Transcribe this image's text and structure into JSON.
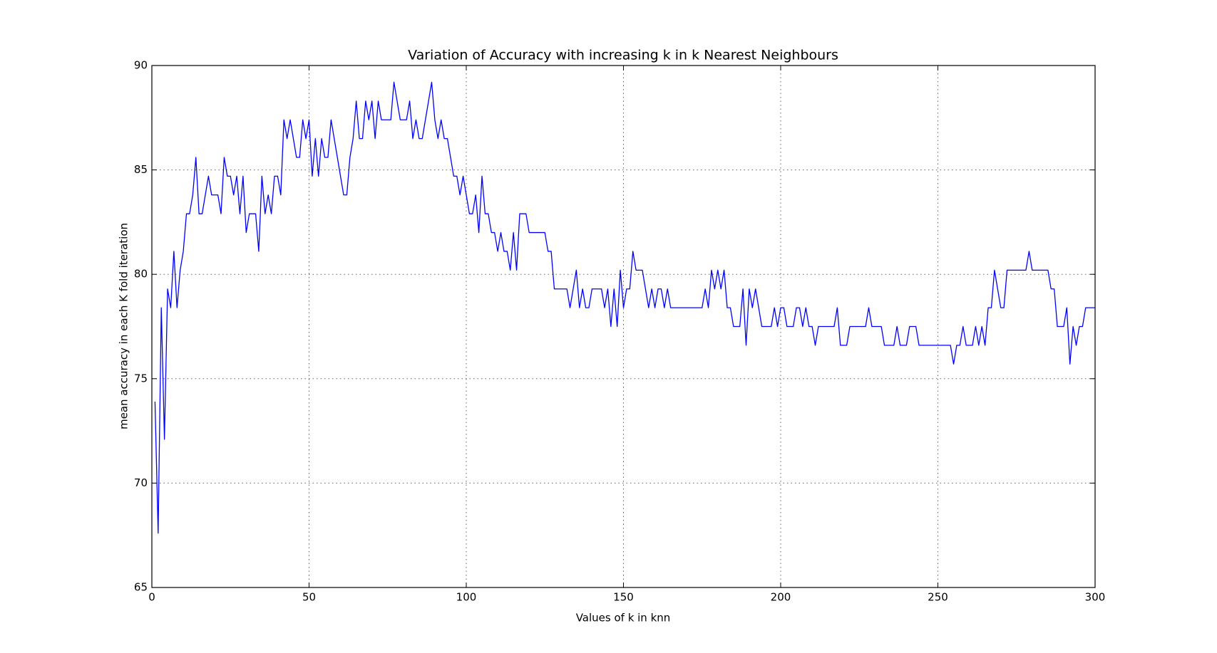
{
  "chart_data": {
    "type": "line",
    "title": "Variation of Accuracy with increasing k in k Nearest Neighbours",
    "x_label": "Values of k in knn",
    "y_label": "mean accuracy in each K fold iteration",
    "xlim": [
      0,
      300
    ],
    "ylim": [
      65,
      90
    ],
    "xticks": [
      0,
      50,
      100,
      150,
      200,
      250,
      300
    ],
    "yticks": [
      65,
      70,
      75,
      80,
      85,
      90
    ],
    "grid": true,
    "x": [
      1,
      2,
      3,
      4,
      5,
      6,
      7,
      8,
      9,
      10,
      11,
      12,
      13,
      14,
      15,
      16,
      17,
      18,
      19,
      20,
      21,
      22,
      23,
      24,
      25,
      26,
      27,
      28,
      29,
      30,
      31,
      32,
      33,
      34,
      35,
      36,
      37,
      38,
      39,
      40,
      41,
      42,
      43,
      44,
      45,
      46,
      47,
      48,
      49,
      50,
      51,
      52,
      53,
      54,
      55,
      56,
      57,
      58,
      59,
      60,
      61,
      62,
      63,
      64,
      65,
      66,
      67,
      68,
      69,
      70,
      71,
      72,
      73,
      74,
      75,
      76,
      77,
      78,
      79,
      80,
      81,
      82,
      83,
      84,
      85,
      86,
      87,
      88,
      89,
      90,
      91,
      92,
      93,
      94,
      95,
      96,
      97,
      98,
      99,
      100,
      101,
      102,
      103,
      104,
      105,
      106,
      107,
      108,
      109,
      110,
      111,
      112,
      113,
      114,
      115,
      116,
      117,
      118,
      119,
      120,
      121,
      122,
      123,
      124,
      125,
      126,
      127,
      128,
      129,
      130,
      131,
      132,
      133,
      134,
      135,
      136,
      137,
      138,
      139,
      140,
      141,
      142,
      143,
      144,
      145,
      146,
      147,
      148,
      149,
      150,
      151,
      152,
      153,
      154,
      155,
      156,
      157,
      158,
      159,
      160,
      161,
      162,
      163,
      164,
      165,
      166,
      167,
      168,
      169,
      170,
      171,
      172,
      173,
      174,
      175,
      176,
      177,
      178,
      179,
      180,
      181,
      182,
      183,
      184,
      185,
      186,
      187,
      188,
      189,
      190,
      191,
      192,
      193,
      194,
      195,
      196,
      197,
      198,
      199,
      200,
      201,
      202,
      203,
      204,
      205,
      206,
      207,
      208,
      209,
      210,
      211,
      212,
      213,
      214,
      215,
      216,
      217,
      218,
      219,
      220,
      221,
      222,
      223,
      224,
      225,
      226,
      227,
      228,
      229,
      230,
      231,
      232,
      233,
      234,
      235,
      236,
      237,
      238,
      239,
      240,
      241,
      242,
      243,
      244,
      245,
      246,
      247,
      248,
      249,
      250,
      251,
      252,
      253,
      254,
      255,
      256,
      257,
      258,
      259,
      260,
      261,
      262,
      263,
      264,
      265,
      266,
      267,
      268,
      269,
      270,
      271,
      272,
      273,
      274,
      275,
      276,
      277,
      278,
      279,
      280,
      281,
      282,
      283,
      284,
      285,
      286,
      287,
      288,
      289,
      290,
      291,
      292,
      293,
      294,
      295,
      296,
      297,
      298,
      299,
      300
    ],
    "series": [
      {
        "color": "#0000ff",
        "values": [
          73.9,
          67.6,
          78.4,
          72.1,
          79.3,
          78.4,
          81.1,
          78.4,
          80.2,
          81.1,
          82.9,
          82.9,
          83.8,
          85.6,
          82.9,
          82.9,
          83.8,
          84.7,
          83.8,
          83.8,
          83.8,
          82.9,
          85.6,
          84.7,
          84.7,
          83.8,
          84.7,
          82.9,
          84.7,
          82.0,
          82.9,
          82.9,
          82.9,
          81.1,
          84.7,
          82.9,
          83.8,
          82.9,
          84.7,
          84.7,
          83.8,
          87.4,
          86.5,
          87.4,
          86.5,
          85.6,
          85.6,
          87.4,
          86.5,
          87.4,
          84.7,
          86.5,
          84.7,
          86.5,
          85.6,
          85.6,
          87.4,
          86.5,
          85.6,
          84.7,
          83.8,
          83.8,
          85.6,
          86.5,
          88.3,
          86.5,
          86.5,
          88.3,
          87.4,
          88.3,
          86.5,
          88.3,
          87.4,
          87.4,
          87.4,
          87.4,
          89.2,
          88.3,
          87.4,
          87.4,
          87.4,
          88.3,
          86.5,
          87.4,
          86.5,
          86.5,
          87.4,
          88.3,
          89.2,
          87.4,
          86.5,
          87.4,
          86.5,
          86.5,
          85.6,
          84.7,
          84.7,
          83.8,
          84.7,
          83.8,
          82.9,
          82.9,
          83.8,
          82.0,
          84.7,
          82.9,
          82.9,
          82.0,
          82.0,
          81.1,
          82.0,
          81.1,
          81.1,
          80.2,
          82.0,
          80.2,
          82.9,
          82.9,
          82.9,
          82.0,
          82.0,
          82.0,
          82.0,
          82.0,
          82.0,
          81.1,
          81.1,
          79.3,
          79.3,
          79.3,
          79.3,
          79.3,
          78.4,
          79.3,
          80.2,
          78.4,
          79.3,
          78.4,
          78.4,
          79.3,
          79.3,
          79.3,
          79.3,
          78.4,
          79.3,
          77.5,
          79.3,
          77.5,
          80.2,
          78.4,
          79.3,
          79.3,
          81.1,
          80.2,
          80.2,
          80.2,
          79.3,
          78.4,
          79.3,
          78.4,
          79.3,
          79.3,
          78.4,
          79.3,
          78.4,
          78.4,
          78.4,
          78.4,
          78.4,
          78.4,
          78.4,
          78.4,
          78.4,
          78.4,
          78.4,
          79.3,
          78.4,
          80.2,
          79.3,
          80.2,
          79.3,
          80.2,
          78.4,
          78.4,
          77.5,
          77.5,
          77.5,
          79.3,
          76.6,
          79.3,
          78.4,
          79.3,
          78.4,
          77.5,
          77.5,
          77.5,
          77.5,
          78.4,
          77.5,
          78.4,
          78.4,
          77.5,
          77.5,
          77.5,
          78.4,
          78.4,
          77.5,
          78.4,
          77.5,
          77.5,
          76.6,
          77.5,
          77.5,
          77.5,
          77.5,
          77.5,
          77.5,
          78.4,
          76.6,
          76.6,
          76.6,
          77.5,
          77.5,
          77.5,
          77.5,
          77.5,
          77.5,
          78.4,
          77.5,
          77.5,
          77.5,
          77.5,
          76.6,
          76.6,
          76.6,
          76.6,
          77.5,
          76.6,
          76.6,
          76.6,
          77.5,
          77.5,
          77.5,
          76.6,
          76.6,
          76.6,
          76.6,
          76.6,
          76.6,
          76.6,
          76.6,
          76.6,
          76.6,
          76.6,
          75.7,
          76.6,
          76.6,
          77.5,
          76.6,
          76.6,
          76.6,
          77.5,
          76.6,
          77.5,
          76.6,
          78.4,
          78.4,
          80.2,
          79.3,
          78.4,
          78.4,
          80.2,
          80.2,
          80.2,
          80.2,
          80.2,
          80.2,
          80.2,
          81.1,
          80.2,
          80.2,
          80.2,
          80.2,
          80.2,
          80.2,
          79.3,
          79.3,
          77.5,
          77.5,
          77.5,
          78.4,
          75.7,
          77.5,
          76.6,
          77.5,
          77.5,
          78.4,
          78.4,
          78.4,
          78.4
        ]
      }
    ]
  }
}
